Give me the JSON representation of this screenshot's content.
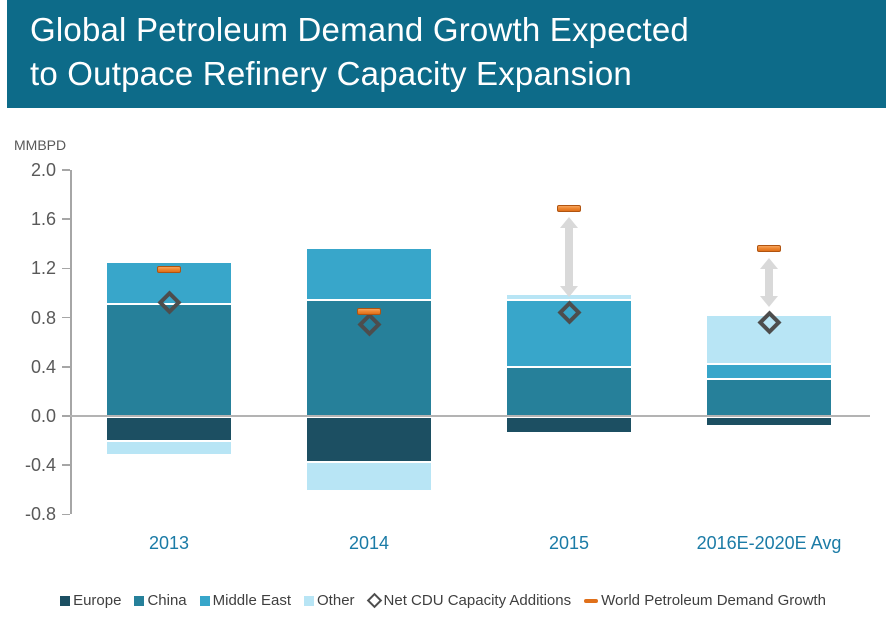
{
  "title": {
    "line1": "Global Petroleum Demand Growth Expected",
    "line2": "to Outpace Refinery Capacity Expansion"
  },
  "colors": {
    "banner_bg": "#0d6b89",
    "title_text": "#ffffff",
    "axis_line": "#a6a6a6",
    "zero_line": "#b3b3b3",
    "tick_text": "#595959",
    "category_text": "#1b7ba6",
    "legend_text": "#3f3f3f",
    "arrow_gray": "#d9d9d9",
    "diamond_stroke": "#4d4d4d",
    "dash_orange": "#e87820"
  },
  "chart_data": {
    "type": "bar",
    "stacked": true,
    "title": "Global Petroleum Demand Growth Expected to Outpace Refinery Capacity Expansion",
    "ylabel": "MMBPD",
    "xlabel": "",
    "ylim": [
      -0.8,
      2.0
    ],
    "yticks": [
      2.0,
      1.6,
      1.2,
      0.8,
      0.4,
      0.0,
      -0.4,
      -0.8
    ],
    "grid": false,
    "legend_position": "bottom",
    "categories": [
      "2013",
      "2014",
      "2015",
      "2016E-2020E Avg"
    ],
    "series": [
      {
        "name": "Europe",
        "color": "#1c4f62",
        "values": [
          -0.21,
          -0.38,
          -0.13,
          -0.07
        ]
      },
      {
        "name": "China",
        "color": "#26809a",
        "values": [
          0.92,
          0.95,
          0.41,
          0.31
        ]
      },
      {
        "name": "Middle East",
        "color": "#38a6ca",
        "values": [
          0.32,
          0.41,
          0.54,
          0.12
        ]
      },
      {
        "name": "Other",
        "color": "#b8e5f5",
        "values": [
          -0.1,
          -0.22,
          0.03,
          0.38
        ]
      }
    ],
    "markers": [
      {
        "name": "Net CDU Capacity Additions",
        "type": "diamond",
        "values": [
          0.92,
          0.74,
          0.84,
          0.76
        ]
      },
      {
        "name": "World Petroleum Demand Growth",
        "type": "dash",
        "values": [
          1.19,
          0.85,
          1.69,
          1.36
        ]
      }
    ],
    "gap_arrows": [
      false,
      false,
      true,
      true
    ]
  },
  "legend": {
    "items": [
      {
        "label": "Europe",
        "marker": "square",
        "color": "#1c4f62"
      },
      {
        "label": "China",
        "marker": "square",
        "color": "#26809a"
      },
      {
        "label": "Middle East",
        "marker": "square",
        "color": "#38a6ca"
      },
      {
        "label": "Other",
        "marker": "square",
        "color": "#b8e5f5"
      },
      {
        "label": "Net CDU Capacity Additions",
        "marker": "diamond",
        "color": "#4d4d4d"
      },
      {
        "label": "World Petroleum Demand Growth",
        "marker": "dash",
        "color": "#e0701a"
      }
    ]
  }
}
